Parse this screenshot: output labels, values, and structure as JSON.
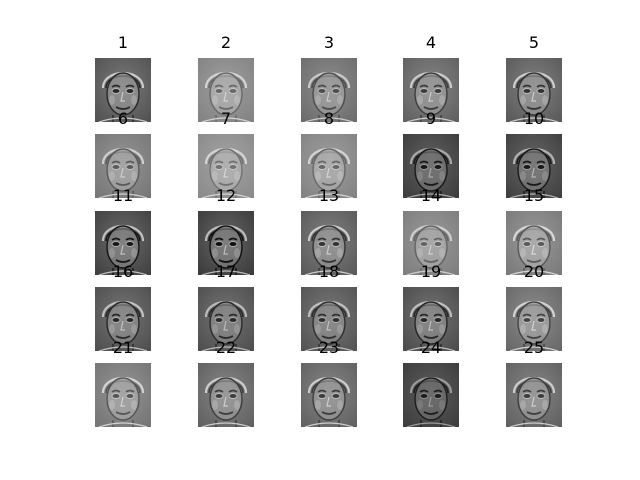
{
  "figure": {
    "panels": [
      {
        "label": "1",
        "tone": 0.48,
        "contrast": 0.9
      },
      {
        "label": "2",
        "tone": 0.62,
        "contrast": 0.6
      },
      {
        "label": "3",
        "tone": 0.55,
        "contrast": 0.7
      },
      {
        "label": "4",
        "tone": 0.52,
        "contrast": 0.8
      },
      {
        "label": "5",
        "tone": 0.5,
        "contrast": 0.85
      },
      {
        "label": "6",
        "tone": 0.58,
        "contrast": 0.65
      },
      {
        "label": "7",
        "tone": 0.64,
        "contrast": 0.55
      },
      {
        "label": "8",
        "tone": 0.62,
        "contrast": 0.6
      },
      {
        "label": "9",
        "tone": 0.38,
        "contrast": 0.8
      },
      {
        "label": "10",
        "tone": 0.4,
        "contrast": 0.85
      },
      {
        "label": "11",
        "tone": 0.42,
        "contrast": 0.95
      },
      {
        "label": "12",
        "tone": 0.4,
        "contrast": 0.95
      },
      {
        "label": "13",
        "tone": 0.5,
        "contrast": 0.85
      },
      {
        "label": "14",
        "tone": 0.6,
        "contrast": 0.6
      },
      {
        "label": "15",
        "tone": 0.6,
        "contrast": 0.7
      },
      {
        "label": "16",
        "tone": 0.46,
        "contrast": 0.85
      },
      {
        "label": "17",
        "tone": 0.45,
        "contrast": 0.8
      },
      {
        "label": "18",
        "tone": 0.47,
        "contrast": 0.8
      },
      {
        "label": "19",
        "tone": 0.45,
        "contrast": 0.85
      },
      {
        "label": "20",
        "tone": 0.55,
        "contrast": 0.8
      },
      {
        "label": "21",
        "tone": 0.58,
        "contrast": 0.7
      },
      {
        "label": "22",
        "tone": 0.52,
        "contrast": 0.8
      },
      {
        "label": "23",
        "tone": 0.52,
        "contrast": 0.8
      },
      {
        "label": "24",
        "tone": 0.36,
        "contrast": 0.7
      },
      {
        "label": "25",
        "tone": 0.52,
        "contrast": 0.8
      }
    ]
  }
}
